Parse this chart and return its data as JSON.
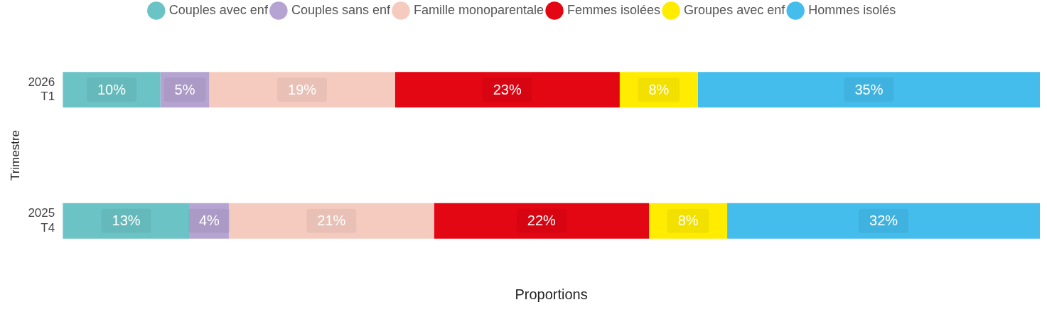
{
  "chart_data": {
    "type": "bar",
    "orientation": "horizontal",
    "stacked": true,
    "xlabel": "Proportions",
    "ylabel": "Trimestre",
    "categories": [
      "2026 T1",
      "2025 T4"
    ],
    "tick_labels": "y",
    "legend": "top",
    "series": [
      {
        "name": "Couples avec enf",
        "color": "#6cc3c5",
        "values": [
          10,
          13
        ],
        "value_labels": [
          "10%",
          "13%"
        ]
      },
      {
        "name": "Couples sans enf",
        "color": "#b5a3d1",
        "values": [
          5,
          4
        ],
        "value_labels": [
          "5%",
          "4%"
        ]
      },
      {
        "name": "Famille monoparentale",
        "color": "#f5cbbf",
        "values": [
          19,
          21
        ],
        "value_labels": [
          "19%",
          "21%"
        ]
      },
      {
        "name": "Femmes isolées",
        "color": "#e30613",
        "values": [
          23,
          22
        ],
        "value_labels": [
          "23%",
          "22%"
        ]
      },
      {
        "name": "Groupes avec enf",
        "color": "#ffec00",
        "values": [
          8,
          8
        ],
        "value_labels": [
          "8%",
          "8%"
        ]
      },
      {
        "name": "Hommes isolés",
        "color": "#44bcec",
        "values": [
          35,
          32
        ],
        "value_labels": [
          "35%",
          "32%"
        ]
      }
    ]
  }
}
